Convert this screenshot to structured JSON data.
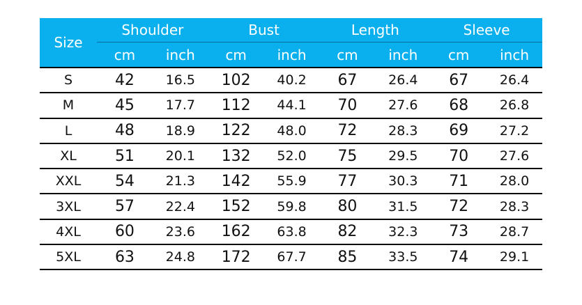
{
  "header": {
    "size": "Size",
    "groups": [
      "Shoulder",
      "Bust",
      "Length",
      "Sleeve"
    ],
    "units": [
      "cm",
      "inch"
    ]
  },
  "colors": {
    "header_bg": "#0ab0ee",
    "header_text": "#ffffff"
  },
  "rows": [
    {
      "size": "S",
      "values": [
        "42",
        "16.5",
        "102",
        "40.2",
        "67",
        "26.4",
        "67",
        "26.4"
      ]
    },
    {
      "size": "M",
      "values": [
        "45",
        "17.7",
        "112",
        "44.1",
        "70",
        "27.6",
        "68",
        "26.8"
      ]
    },
    {
      "size": "L",
      "values": [
        "48",
        "18.9",
        "122",
        "48.0",
        "72",
        "28.3",
        "69",
        "27.2"
      ]
    },
    {
      "size": "XL",
      "values": [
        "51",
        "20.1",
        "132",
        "52.0",
        "75",
        "29.5",
        "70",
        "27.6"
      ]
    },
    {
      "size": "XXL",
      "values": [
        "54",
        "21.3",
        "142",
        "55.9",
        "77",
        "30.3",
        "71",
        "28.0"
      ]
    },
    {
      "size": "3XL",
      "values": [
        "57",
        "22.4",
        "152",
        "59.8",
        "80",
        "31.5",
        "72",
        "28.3"
      ]
    },
    {
      "size": "4XL",
      "values": [
        "60",
        "23.6",
        "162",
        "63.8",
        "82",
        "32.3",
        "73",
        "28.7"
      ]
    },
    {
      "size": "5XL",
      "values": [
        "63",
        "24.8",
        "172",
        "67.7",
        "85",
        "33.5",
        "74",
        "29.1"
      ]
    }
  ]
}
